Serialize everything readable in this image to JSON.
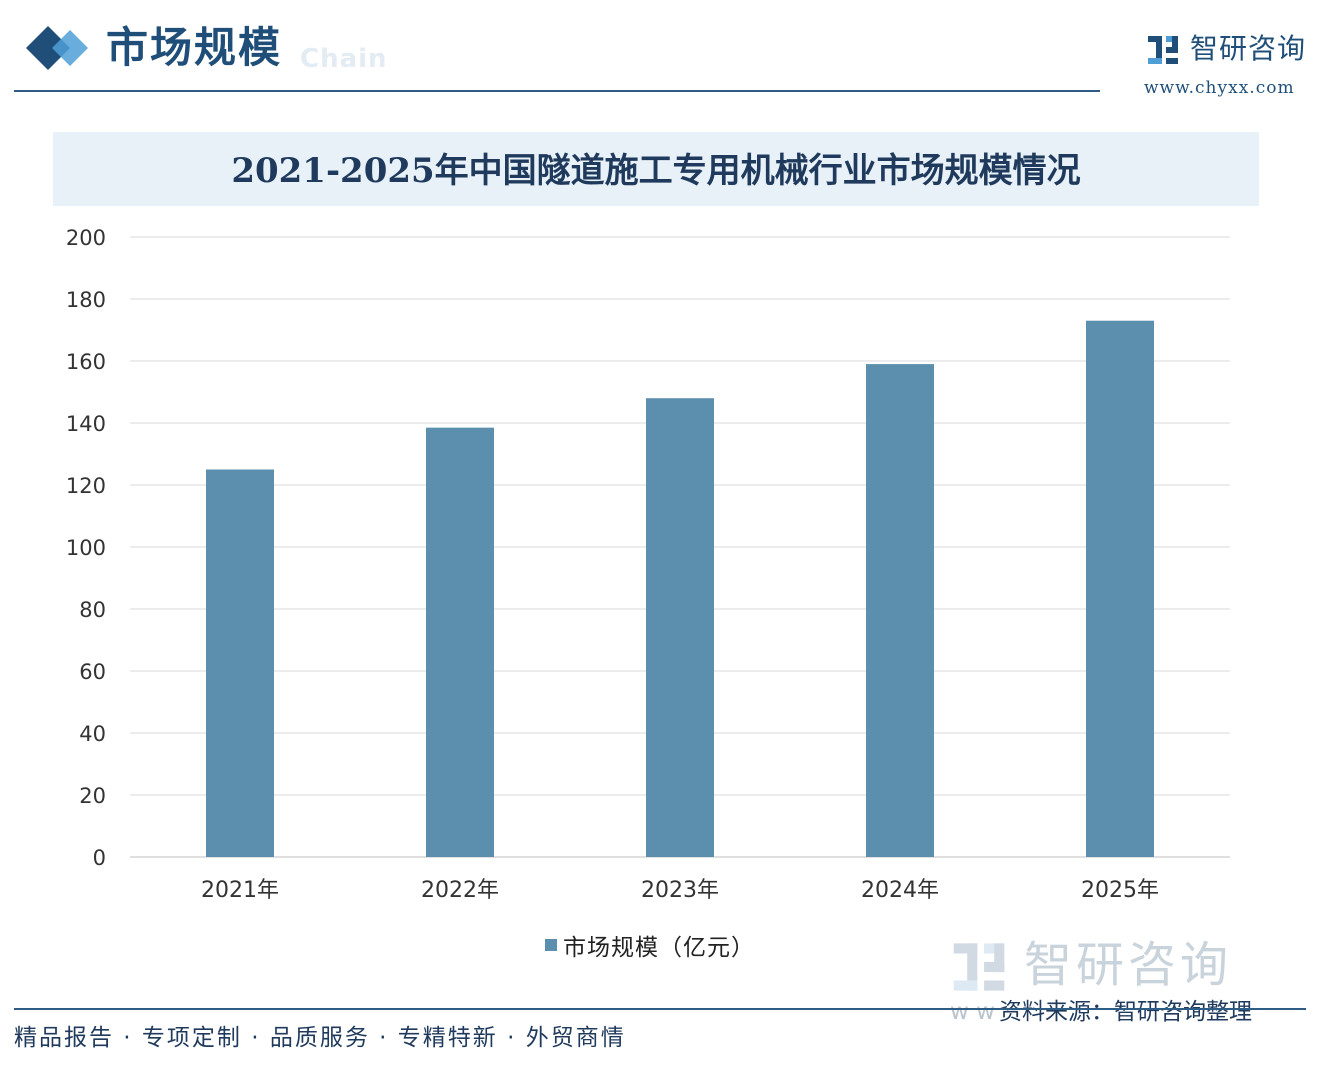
{
  "header": {
    "section_title": "市场规模",
    "section_subtitle": "Chain",
    "brand_name": "智研咨询",
    "brand_url": "www.chyxx.com"
  },
  "colors": {
    "bar": "#5b8fad",
    "accent_dark": "#1f4e79",
    "accent_light": "#4f9fd6",
    "grid": "#d9d9d9",
    "title_band": "#e8f1f8"
  },
  "chart_data": {
    "type": "bar",
    "title": "2021-2025年中国隧道施工专用机械行业市场规模情况",
    "categories": [
      "2021年",
      "2022年",
      "2023年",
      "2024年",
      "2025年"
    ],
    "series": [
      {
        "name": "市场规模（亿元）",
        "values": [
          125,
          138.5,
          148,
          159,
          173
        ]
      }
    ],
    "xlabel": "",
    "ylabel": "",
    "ylim": [
      0,
      200
    ],
    "yticks": [
      0,
      20,
      40,
      60,
      80,
      100,
      120,
      140,
      160,
      180,
      200
    ],
    "grid": true,
    "legend_position": "bottom-center"
  },
  "watermark": {
    "text": "智研咨询",
    "icon": "zhiyan-logo-icon"
  },
  "source": {
    "prefix": "w w",
    "text": "资料来源：智研咨询整理"
  },
  "footer": {
    "slogan": "精品报告 · 专项定制 · 品质服务 · 专精特新 · 外贸商情"
  }
}
